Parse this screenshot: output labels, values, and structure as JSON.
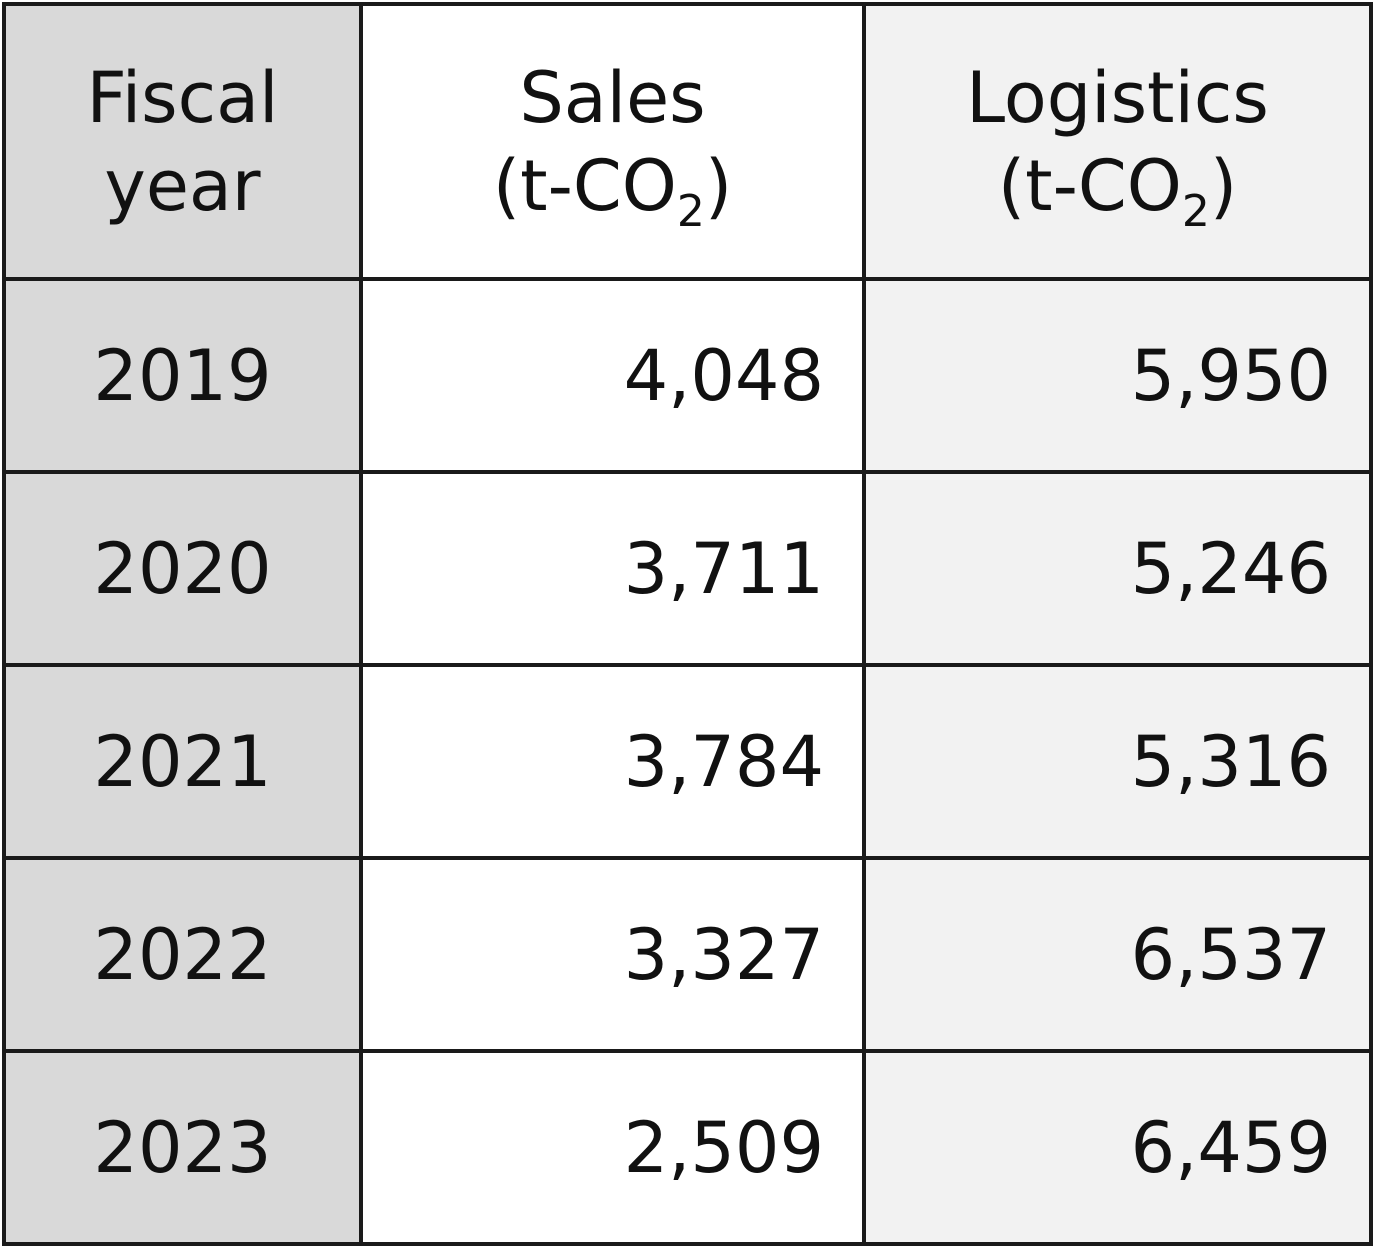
{
  "table": {
    "headers": {
      "year": {
        "line1": "Fiscal",
        "line2": "year"
      },
      "sales": {
        "line1": "Sales",
        "unit_prefix": "(t-CO",
        "unit_sub": "2",
        "unit_suffix": ")"
      },
      "logistics": {
        "line1": "Logistics",
        "unit_prefix": "(t-CO",
        "unit_sub": "2",
        "unit_suffix": ")"
      }
    },
    "rows": [
      {
        "year": "2019",
        "sales": "4,048",
        "logistics": "5,950"
      },
      {
        "year": "2020",
        "sales": "3,711",
        "logistics": "5,246"
      },
      {
        "year": "2021",
        "sales": "3,784",
        "logistics": "5,316"
      },
      {
        "year": "2022",
        "sales": "3,327",
        "logistics": "6,537"
      },
      {
        "year": "2023",
        "sales": "2,509",
        "logistics": "6,459"
      }
    ]
  },
  "colors": {
    "year_column_bg": "#d9d9d9",
    "sales_column_bg": "#ffffff",
    "logistics_column_bg": "#f2f2f2",
    "border": "#1a1a1a"
  }
}
